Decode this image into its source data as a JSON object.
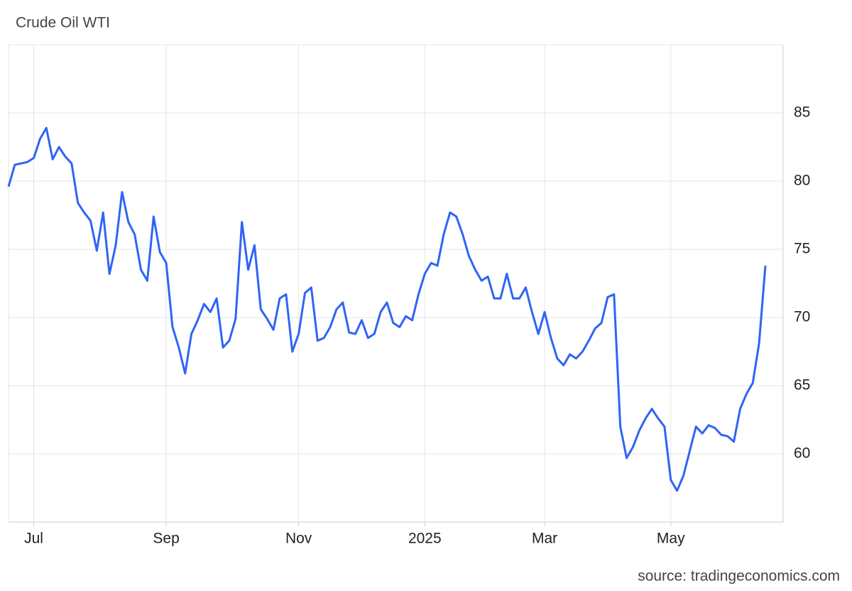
{
  "chart_data": {
    "type": "line",
    "title": "Crude Oil WTI",
    "source": "source: tradingeconomics.com",
    "categories": [
      null,
      null,
      null,
      null,
      "Jul",
      null,
      null,
      null,
      null,
      null,
      null,
      null,
      null,
      null,
      null,
      null,
      null,
      null,
      null,
      null,
      null,
      null,
      null,
      null,
      null,
      "Sep",
      null,
      null,
      null,
      null,
      null,
      null,
      null,
      null,
      null,
      null,
      null,
      null,
      null,
      null,
      null,
      null,
      null,
      null,
      null,
      null,
      "Nov",
      null,
      null,
      null,
      null,
      null,
      null,
      null,
      null,
      null,
      null,
      null,
      null,
      null,
      null,
      null,
      null,
      null,
      null,
      null,
      "2025",
      null,
      null,
      null,
      null,
      null,
      null,
      null,
      null,
      null,
      null,
      null,
      null,
      null,
      null,
      null,
      null,
      null,
      null,
      "Mar",
      null,
      null,
      null,
      null,
      null,
      null,
      null,
      null,
      null,
      null,
      null,
      null,
      null,
      null,
      null,
      null,
      null,
      null,
      null,
      "May",
      null,
      null,
      null,
      null,
      null,
      null,
      null,
      null,
      null,
      null,
      null,
      null,
      null,
      null,
      null
    ],
    "values": [
      79.6,
      81.2,
      81.3,
      81.4,
      81.7,
      83.1,
      83.9,
      81.6,
      82.5,
      81.8,
      81.3,
      78.4,
      77.7,
      77.1,
      74.9,
      77.7,
      73.2,
      75.3,
      79.2,
      77.0,
      76.1,
      73.5,
      72.7,
      77.4,
      74.8,
      74.0,
      69.3,
      67.8,
      65.9,
      68.8,
      69.8,
      71.0,
      70.4,
      71.4,
      67.8,
      68.3,
      69.9,
      77.0,
      73.5,
      75.3,
      70.6,
      69.9,
      69.1,
      71.4,
      71.7,
      67.5,
      68.8,
      71.8,
      72.2,
      68.3,
      68.5,
      69.3,
      70.6,
      71.1,
      68.9,
      68.8,
      69.8,
      68.5,
      68.8,
      70.4,
      71.1,
      69.6,
      69.3,
      70.1,
      69.8,
      71.7,
      73.2,
      74.0,
      73.8,
      76.1,
      77.7,
      77.4,
      76.1,
      74.5,
      73.5,
      72.7,
      73.0,
      71.4,
      71.4,
      73.2,
      71.4,
      71.4,
      72.2,
      70.4,
      68.8,
      70.4,
      68.5,
      67.0,
      66.5,
      67.3,
      67.0,
      67.5,
      68.3,
      69.2,
      69.6,
      71.5,
      71.7,
      62.0,
      59.7,
      60.5,
      61.7,
      62.6,
      63.3,
      62.6,
      62.0,
      58.1,
      57.3,
      58.4,
      60.2,
      62.0,
      61.5,
      62.1,
      61.9,
      61.4,
      61.3,
      60.9,
      63.3,
      64.4,
      65.2,
      68.1,
      73.8
    ],
    "color": "#2f64f5",
    "ylim": [
      55,
      90
    ],
    "yticks": [
      60,
      65,
      70,
      75,
      80,
      85
    ],
    "grid": true
  }
}
